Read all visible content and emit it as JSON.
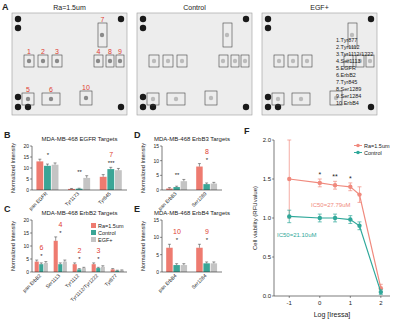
{
  "blot": {
    "panel": "A",
    "membranes": [
      "Ra=1.5um",
      "Control",
      "EGF+"
    ],
    "spots": [
      "1",
      "2",
      "3",
      "4",
      "5",
      "6",
      "7",
      "8",
      "9",
      "10"
    ],
    "key": [
      "1.Tyr877",
      "2.Tyr1112",
      "3.Tyr1112/1222",
      "4.Ser1113",
      "5.EGFR",
      "6.ErbB2",
      "7.Tyr845",
      "8.Ser1289",
      "9.Ser1284",
      "10.ErbB4"
    ]
  },
  "chart_data": [
    {
      "type": "bar",
      "panel": "B",
      "title": "MDA-MB-468 EGFR Targets",
      "y_label": "Normalized Intensity",
      "categories": [
        "pan EGFR",
        "Tyr1173",
        "Tyr845"
      ],
      "series": [
        {
          "name": "Ra=1.5um",
          "color": "#ee7b70",
          "values": [
            13,
            0.5,
            6
          ],
          "errors": [
            1,
            0.2,
            1
          ]
        },
        {
          "name": "Control",
          "color": "#3aa596",
          "values": [
            11,
            0.6,
            9.5
          ],
          "errors": [
            0.8,
            0.2,
            0.8
          ]
        },
        {
          "name": "EGF+",
          "color": "#c4c4c4",
          "values": [
            11.5,
            5.5,
            9
          ],
          "errors": [
            0.8,
            1,
            0.8
          ]
        }
      ],
      "ylim": [
        0,
        20
      ],
      "yticks": [
        0,
        5,
        10,
        15,
        20
      ],
      "grid": false,
      "annotations": [
        {
          "text": "*",
          "category": "pan EGFR"
        },
        {
          "text": "**",
          "category": "Tyr1173"
        },
        {
          "text": "***",
          "category": "Tyr845"
        },
        {
          "text": "7",
          "category": "Tyr845",
          "color": "#e03c31"
        }
      ]
    },
    {
      "type": "bar",
      "panel": "C",
      "title": "MDA-MB-468 ErbB2 Targets",
      "y_label": "Normalized Intensity",
      "categories": [
        "pan ErbB2",
        "Ser1113",
        "Tyr1112",
        "Tyr1112/Tyr1222",
        "Tyr877"
      ],
      "series": [
        {
          "name": "Ra=1.5um",
          "color": "#ee7b70",
          "values": [
            4,
            12,
            3,
            3,
            1
          ],
          "errors": [
            0.6,
            1.5,
            0.5,
            0.5,
            0.3
          ]
        },
        {
          "name": "Control",
          "color": "#3aa596",
          "values": [
            3,
            3,
            1,
            1.5,
            0.5
          ],
          "errors": [
            0.5,
            0.5,
            0.3,
            0.3,
            0.2
          ]
        },
        {
          "name": "EGF+",
          "color": "#c4c4c4",
          "values": [
            3.5,
            4,
            1.5,
            2,
            0.6
          ],
          "errors": [
            0.5,
            0.6,
            0.3,
            0.4,
            0.2
          ]
        }
      ],
      "ylim": [
        0,
        20
      ],
      "yticks": [
        0,
        5,
        10,
        15,
        20
      ],
      "grid": false,
      "legend": "upper right",
      "annotations": [
        {
          "text": "*",
          "category": "pan ErbB2"
        },
        {
          "text": "6",
          "category": "pan ErbB2",
          "color": "#e03c31"
        },
        {
          "text": "*",
          "category": "Ser1113"
        },
        {
          "text": "4",
          "category": "Ser1113",
          "color": "#e03c31"
        },
        {
          "text": "*",
          "category": "Tyr1112"
        },
        {
          "text": "2",
          "category": "Tyr1112",
          "color": "#e03c31"
        },
        {
          "text": "*",
          "category": "Tyr1112/Tyr1222"
        },
        {
          "text": "3",
          "category": "Tyr1112/Tyr1222",
          "color": "#e03c31"
        }
      ]
    },
    {
      "type": "bar",
      "panel": "D",
      "title": "MDA-MB-468 ErbB3 Targets",
      "y_label": "Normalized Intensity",
      "categories": [
        "pan ErbB3",
        "Ser1289"
      ],
      "series": [
        {
          "name": "Ra=1.5um",
          "color": "#ee7b70",
          "values": [
            0.5,
            8
          ],
          "errors": [
            0.3,
            1
          ]
        },
        {
          "name": "Control",
          "color": "#3aa596",
          "values": [
            1,
            2
          ],
          "errors": [
            0.3,
            0.4
          ]
        },
        {
          "name": "EGF+",
          "color": "#c4c4c4",
          "values": [
            3,
            2.2
          ],
          "errors": [
            0.6,
            0.4
          ]
        }
      ],
      "ylim": [
        0,
        15
      ],
      "yticks": [
        0,
        5,
        10,
        15
      ],
      "grid": false,
      "annotations": [
        {
          "text": "**",
          "category": "pan ErbB3"
        },
        {
          "text": "*",
          "category": "Ser1289"
        },
        {
          "text": "8",
          "category": "Ser1289",
          "color": "#e03c31"
        }
      ]
    },
    {
      "type": "bar",
      "panel": "E",
      "title": "MDA-MB-468 ErbB4 Targets",
      "y_label": "Normalized Intensity",
      "categories": [
        "pan ErbB4",
        "Ser1284"
      ],
      "series": [
        {
          "name": "Ra=1.5um",
          "color": "#ee7b70",
          "values": [
            7,
            7
          ],
          "errors": [
            1,
            1
          ]
        },
        {
          "name": "Control",
          "color": "#3aa596",
          "values": [
            2,
            2.5
          ],
          "errors": [
            0.4,
            0.4
          ]
        },
        {
          "name": "EGF+",
          "color": "#c4c4c4",
          "values": [
            2,
            2.5
          ],
          "errors": [
            0.4,
            0.4
          ]
        }
      ],
      "ylim": [
        0,
        15
      ],
      "yticks": [
        0,
        5,
        10,
        15
      ],
      "grid": false,
      "annotations": [
        {
          "text": "*",
          "category": "pan ErbB4"
        },
        {
          "text": "10",
          "category": "pan ErbB4",
          "color": "#e03c31"
        },
        {
          "text": "*",
          "category": "Ser1284"
        },
        {
          "text": "9",
          "category": "Ser1284",
          "color": "#e03c31"
        }
      ]
    },
    {
      "type": "line",
      "panel": "F",
      "x_label": "Log [Iressa]",
      "y_label": "Cell viability (RFUvalue)",
      "x": [
        -1,
        0,
        0.5,
        1,
        1.3,
        2
      ],
      "series": [
        {
          "name": "Ra=1.5um",
          "color": "#f08a7e",
          "marker": "circle",
          "values": [
            1.5,
            1.45,
            1.42,
            1.4,
            1.3,
            0.1
          ],
          "errors": [
            0.5,
            0.05,
            0.05,
            0.05,
            0.1,
            0.05
          ]
        },
        {
          "name": "Control",
          "color": "#2fa89a",
          "marker": "circle",
          "values": [
            1.02,
            1.0,
            1.0,
            0.98,
            0.9,
            0.05
          ],
          "errors": [
            0.08,
            0.05,
            0.05,
            0.05,
            0.05,
            0.03
          ]
        }
      ],
      "xlim": [
        -1.5,
        2.3
      ],
      "xticks": [
        -1,
        0,
        1,
        2
      ],
      "ylim": [
        0,
        2
      ],
      "yticks": [
        {
          "value": 0,
          "label": "0.0"
        },
        {
          "value": 0.5,
          "label": "0.5"
        },
        {
          "value": 1,
          "label": "1.0"
        },
        {
          "value": 1.5,
          "label": "1.5"
        },
        {
          "value": 2,
          "label": "2.0"
        }
      ],
      "grid": false,
      "legend": "upper right",
      "annotations": [
        {
          "text": "*",
          "x": 0
        },
        {
          "text": "**",
          "x": 0.5
        },
        {
          "text": "*",
          "x": 1
        },
        {
          "text": "IC50=27.79uM",
          "series": "Ra=1.5um"
        },
        {
          "text": "IC50=21.10uM",
          "series": "Control"
        }
      ]
    }
  ]
}
